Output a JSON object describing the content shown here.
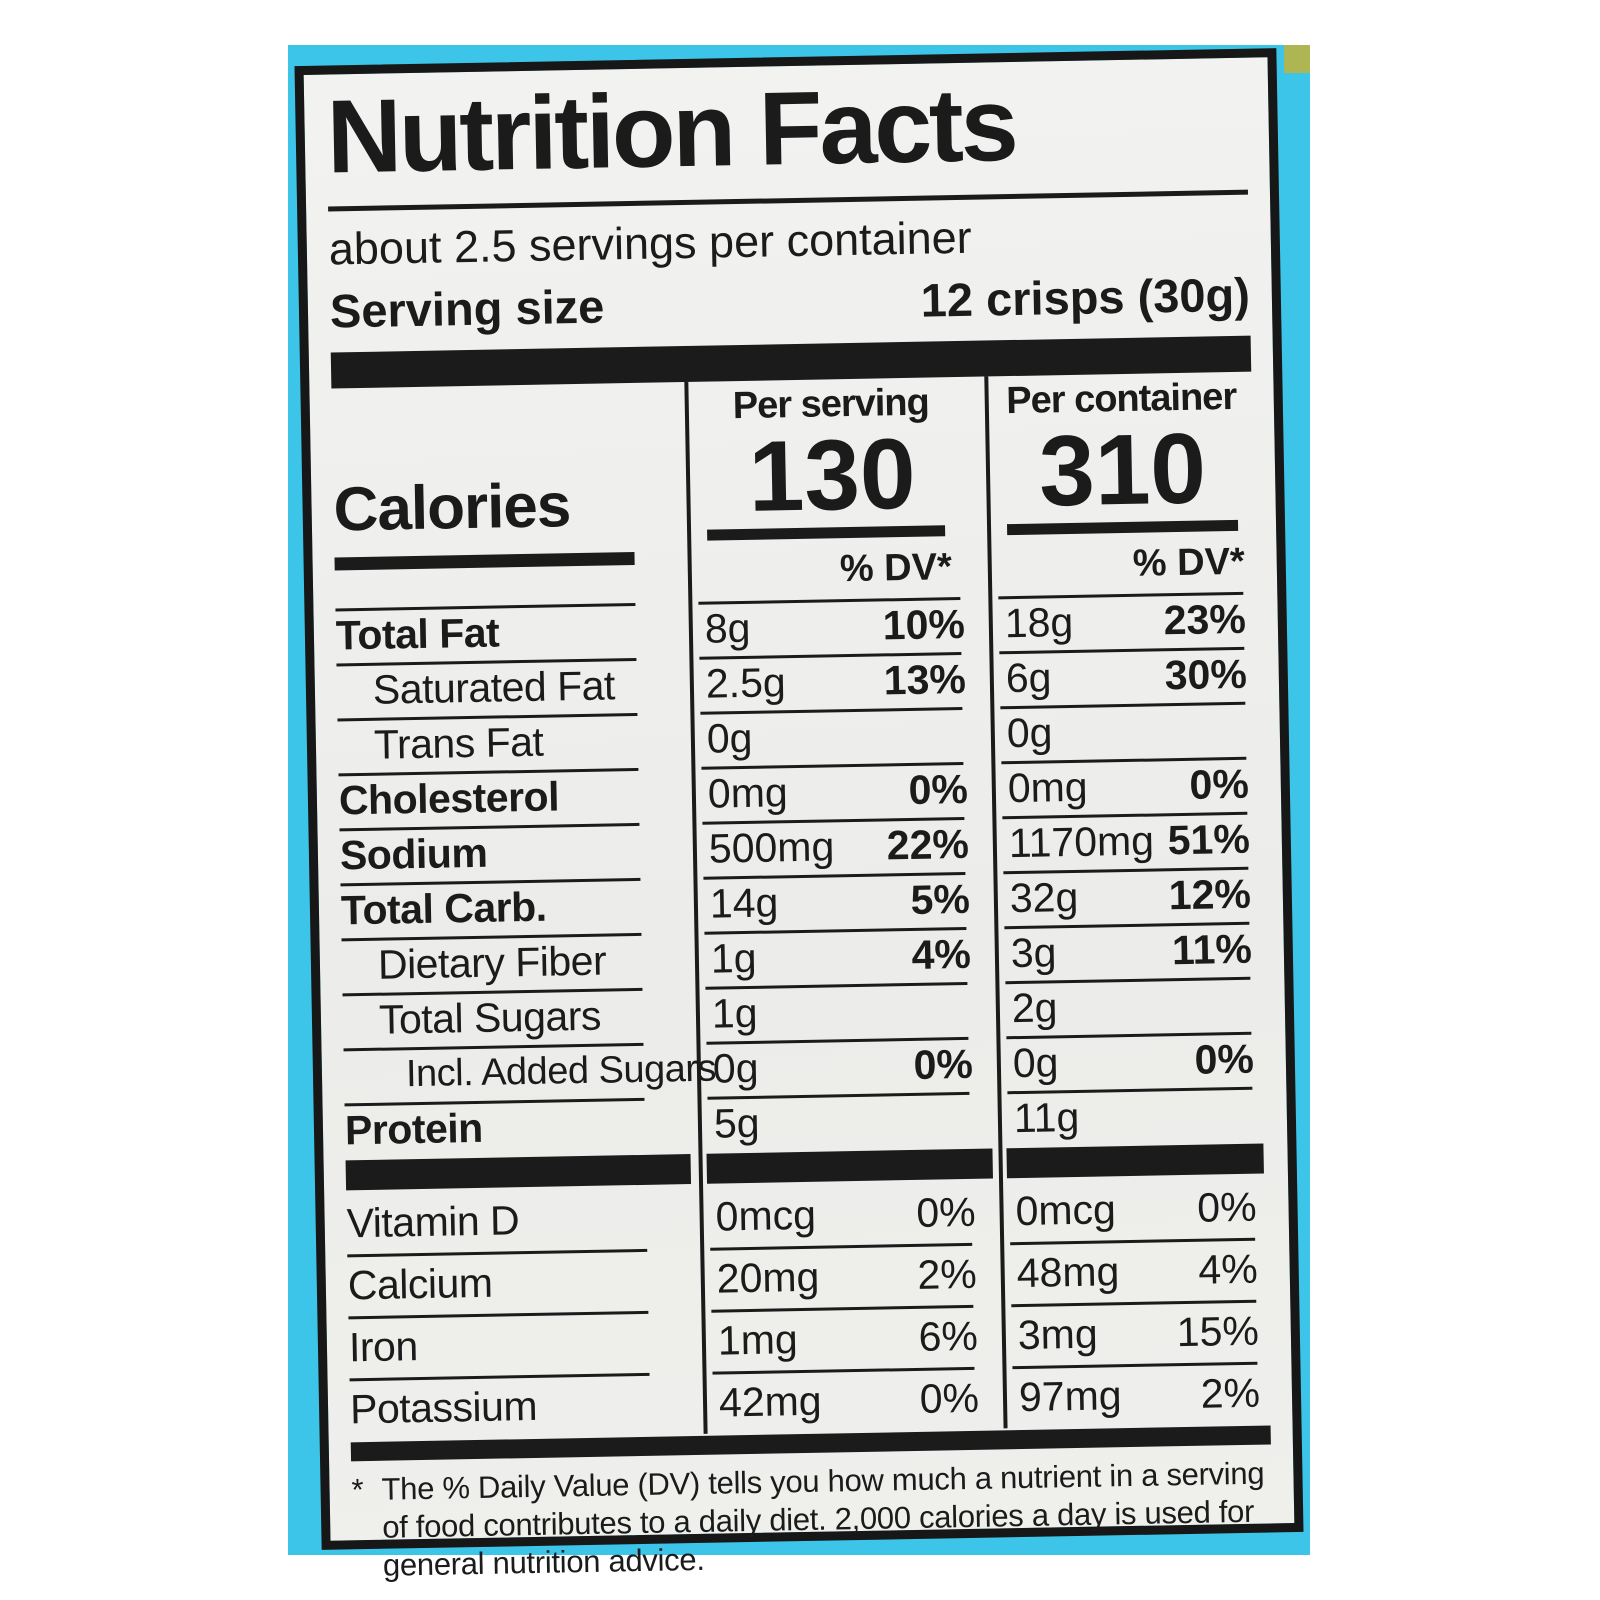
{
  "colors": {
    "package_cyan": "#3cc5e8",
    "corner_olive": "#aeb553",
    "label_background": "#efefec",
    "ink": "#1b1b1b"
  },
  "label": {
    "title": "Nutrition Facts",
    "servings_per_container": "about 2.5 servings per container",
    "serving_size_label": "Serving size",
    "serving_size_value": "12 crisps (30g)",
    "calories": {
      "label": "Calories",
      "serving": {
        "header": "Per serving",
        "value": "130",
        "dv_header": "% DV*"
      },
      "container": {
        "header": "Per container",
        "value": "310",
        "dv_header": "% DV*"
      }
    },
    "nutrients": [
      {
        "name": "Total Fat",
        "serving": {
          "amount": "8g",
          "dv": "10%"
        },
        "container": {
          "amount": "18g",
          "dv": "23%"
        }
      },
      {
        "name": "Saturated Fat",
        "serving": {
          "amount": "2.5g",
          "dv": "13%"
        },
        "container": {
          "amount": "6g",
          "dv": "30%"
        }
      },
      {
        "name": "Trans Fat",
        "serving": {
          "amount": "0g",
          "dv": ""
        },
        "container": {
          "amount": "0g",
          "dv": ""
        }
      },
      {
        "name": "Cholesterol",
        "serving": {
          "amount": "0mg",
          "dv": "0%"
        },
        "container": {
          "amount": "0mg",
          "dv": "0%"
        }
      },
      {
        "name": "Sodium",
        "serving": {
          "amount": "500mg",
          "dv": "22%"
        },
        "container": {
          "amount": "1170mg",
          "dv": "51%"
        }
      },
      {
        "name": "Total Carb.",
        "serving": {
          "amount": "14g",
          "dv": "5%"
        },
        "container": {
          "amount": "32g",
          "dv": "12%"
        }
      },
      {
        "name": "Dietary Fiber",
        "serving": {
          "amount": "1g",
          "dv": "4%"
        },
        "container": {
          "amount": "3g",
          "dv": "11%"
        }
      },
      {
        "name": "Total Sugars",
        "serving": {
          "amount": "1g",
          "dv": ""
        },
        "container": {
          "amount": "2g",
          "dv": ""
        }
      },
      {
        "name": "Incl. Added Sugars",
        "serving": {
          "amount": "0g",
          "dv": "0%"
        },
        "container": {
          "amount": "0g",
          "dv": "0%"
        }
      },
      {
        "name": "Protein",
        "serving": {
          "amount": "5g",
          "dv": ""
        },
        "container": {
          "amount": "11g",
          "dv": ""
        }
      }
    ],
    "micronutrients": [
      {
        "name": "Vitamin D",
        "serving": {
          "amount": "0mcg",
          "dv": "0%"
        },
        "container": {
          "amount": "0mcg",
          "dv": "0%"
        }
      },
      {
        "name": "Calcium",
        "serving": {
          "amount": "20mg",
          "dv": "2%"
        },
        "container": {
          "amount": "48mg",
          "dv": "4%"
        }
      },
      {
        "name": "Iron",
        "serving": {
          "amount": "1mg",
          "dv": "6%"
        },
        "container": {
          "amount": "3mg",
          "dv": "15%"
        }
      },
      {
        "name": "Potassium",
        "serving": {
          "amount": "42mg",
          "dv": "0%"
        },
        "container": {
          "amount": "97mg",
          "dv": "2%"
        }
      }
    ],
    "footnote_marker": "*",
    "footnote": "The % Daily Value (DV) tells you how much a nutrient in a serving of food contributes to a daily diet. 2,000 calories a day is used for general nutrition advice."
  }
}
